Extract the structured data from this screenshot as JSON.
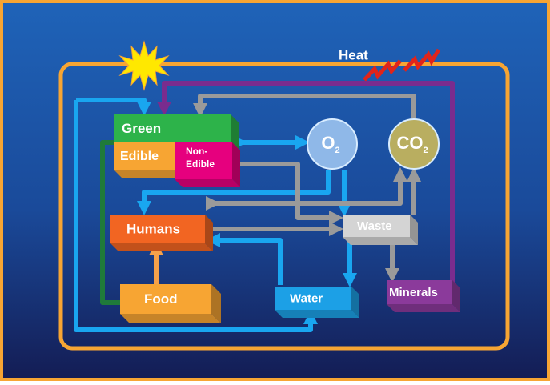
{
  "heat": "Heat",
  "nodes": [
    {
      "label": "Green"
    },
    {
      "label": "Edible"
    },
    {
      "lines": [
        "Non-",
        "Edible"
      ]
    },
    {
      "label": "O",
      "sub": "2"
    },
    {
      "label": "CO",
      "sub": "2"
    },
    {
      "label": "Humans"
    },
    {
      "label": "Waste"
    },
    {
      "label": "Food"
    },
    {
      "label": "Water"
    },
    {
      "label": "Minerals"
    }
  ]
}
